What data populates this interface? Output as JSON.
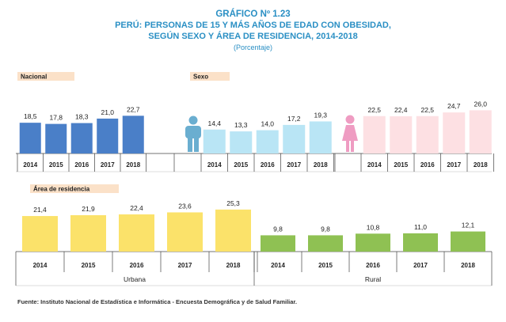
{
  "header": {
    "number": "GRÁFICO Nº 1.23",
    "line1": "PERÚ: PERSONAS DE 15 Y MÁS AÑOS DE EDAD CON OBESIDAD,",
    "line2": "SEGÚN SEXO Y ÁREA DE RESIDENCIA, 2014-2018",
    "unit": "(Porcentaje)"
  },
  "source": "Fuente: Instituto Nacional de Estadística e Informática - Encuesta Demográfica y de Salud Familiar.",
  "colors": {
    "title": "#2a8fc4",
    "section_label_bg": "#fbe1c8",
    "nacional": "#4a7fc8",
    "hombres": "#b9e5f5",
    "mujeres": "#fde0e3",
    "urbana": "#fbe26a",
    "rural": "#8fc153",
    "man_icon": "#6aaed0",
    "woman_icon": "#ef9cc2"
  },
  "chart_data": [
    {
      "type": "bar",
      "section_label": "Nacional",
      "categories": [
        "2014",
        "2015",
        "2016",
        "2017",
        "2018"
      ],
      "values": [
        18.5,
        17.8,
        18.3,
        21.0,
        22.7
      ],
      "value_labels": [
        "18,5",
        "17,8",
        "18,3",
        "21,0",
        "22,7"
      ]
    },
    {
      "type": "bar",
      "section_label": "Sexo",
      "categories": [
        "2014",
        "2015",
        "2016",
        "2017",
        "2018"
      ],
      "series": [
        {
          "icon": "man-icon",
          "values": [
            14.4,
            13.3,
            14.0,
            17.2,
            19.3
          ],
          "value_labels": [
            "14,4",
            "13,3",
            "14,0",
            "17,2",
            "19,3"
          ]
        },
        {
          "icon": "woman-icon",
          "values": [
            22.5,
            22.4,
            22.5,
            24.7,
            26.0
          ],
          "value_labels": [
            "22,5",
            "22,4",
            "22,5",
            "24,7",
            "26,0"
          ]
        }
      ]
    },
    {
      "type": "bar",
      "section_label": "Área de residencia",
      "categories": [
        "2014",
        "2015",
        "2016",
        "2017",
        "2018"
      ],
      "series": [
        {
          "name": "Urbana",
          "values": [
            21.4,
            21.9,
            22.4,
            23.6,
            25.3
          ],
          "value_labels": [
            "21,4",
            "21,9",
            "22,4",
            "23,6",
            "25,3"
          ]
        },
        {
          "name": "Rural",
          "values": [
            9.8,
            9.8,
            10.8,
            11.0,
            12.1
          ],
          "value_labels": [
            "9,8",
            "9,8",
            "10,8",
            "11,0",
            "12,1"
          ]
        }
      ]
    }
  ]
}
